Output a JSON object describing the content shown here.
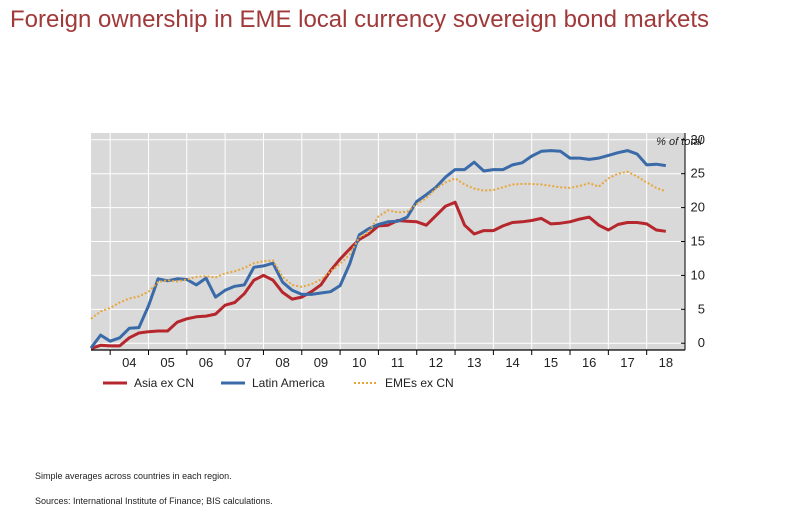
{
  "page": {
    "title": "Foreign ownership in EME local currency sovereign bond markets",
    "notes": [
      "Simple averages across countries in each region.",
      "Sources: International Institute of Finance; BIS calculations."
    ]
  },
  "chart_data": {
    "type": "line",
    "title": "Foreign ownership in EME local currency sovereign bond markets",
    "unit_label": "% of total",
    "ylim": [
      -1,
      31
    ],
    "yticks": [
      0,
      5,
      10,
      15,
      20,
      25,
      30
    ],
    "xlim": [
      2003.5,
      2019.0
    ],
    "xticks": [
      {
        "label": "04",
        "x": 2004.5
      },
      {
        "label": "05",
        "x": 2005.5
      },
      {
        "label": "06",
        "x": 2006.5
      },
      {
        "label": "07",
        "x": 2007.5
      },
      {
        "label": "08",
        "x": 2008.5
      },
      {
        "label": "09",
        "x": 2009.5
      },
      {
        "label": "10",
        "x": 2010.5
      },
      {
        "label": "11",
        "x": 2011.5
      },
      {
        "label": "12",
        "x": 2012.5
      },
      {
        "label": "13",
        "x": 2013.5
      },
      {
        "label": "14",
        "x": 2014.5
      },
      {
        "label": "15",
        "x": 2015.5
      },
      {
        "label": "16",
        "x": 2016.5
      },
      {
        "label": "17",
        "x": 2017.5
      },
      {
        "label": "18",
        "x": 2018.5
      }
    ],
    "grid": true,
    "legend_position": "bottom-left",
    "series": [
      {
        "name": "Asia ex CN",
        "color": "#b5272d",
        "style": "solid",
        "x": [
          2003.5,
          2003.75,
          2004.0,
          2004.25,
          2004.5,
          2004.75,
          2005.0,
          2005.25,
          2005.5,
          2005.75,
          2006.0,
          2006.25,
          2006.5,
          2006.75,
          2007.0,
          2007.25,
          2007.5,
          2007.75,
          2008.0,
          2008.25,
          2008.5,
          2008.75,
          2009.0,
          2009.25,
          2009.5,
          2009.75,
          2010.0,
          2010.25,
          2010.5,
          2010.75,
          2011.0,
          2011.25,
          2011.5,
          2011.75,
          2012.0,
          2012.25,
          2012.5,
          2012.75,
          2013.0,
          2013.25,
          2013.5,
          2013.75,
          2014.0,
          2014.25,
          2014.5,
          2014.75,
          2015.0,
          2015.25,
          2015.5,
          2015.75,
          2016.0,
          2016.25,
          2016.5,
          2016.75,
          2017.0,
          2017.25,
          2017.5,
          2017.75,
          2018.0,
          2018.25,
          2018.5
        ],
        "values": [
          -0.8,
          -0.3,
          -0.4,
          -0.4,
          0.8,
          1.5,
          1.7,
          1.8,
          1.8,
          3.1,
          3.6,
          3.9,
          4.0,
          4.3,
          5.6,
          6.0,
          7.3,
          9.3,
          10.0,
          9.3,
          7.5,
          6.5,
          6.8,
          7.6,
          8.6,
          10.7,
          12.4,
          13.9,
          15.3,
          16.1,
          17.3,
          17.4,
          18.1,
          18.0,
          17.9,
          17.4,
          18.8,
          20.2,
          20.8,
          17.4,
          16.1,
          16.6,
          16.6,
          17.3,
          17.8,
          17.9,
          18.1,
          18.4,
          17.6,
          17.7,
          17.9,
          18.3,
          18.6,
          17.4,
          16.7,
          17.5,
          17.8,
          17.8,
          17.6,
          16.7,
          16.5
        ]
      },
      {
        "name": "Latin America",
        "color": "#3a6aa8",
        "style": "solid",
        "x": [
          2003.5,
          2003.75,
          2004.0,
          2004.25,
          2004.5,
          2004.75,
          2005.0,
          2005.25,
          2005.5,
          2005.75,
          2006.0,
          2006.25,
          2006.5,
          2006.75,
          2007.0,
          2007.25,
          2007.5,
          2007.75,
          2008.0,
          2008.25,
          2008.5,
          2008.75,
          2009.0,
          2009.25,
          2009.5,
          2009.75,
          2010.0,
          2010.25,
          2010.5,
          2010.75,
          2011.0,
          2011.25,
          2011.5,
          2011.75,
          2012.0,
          2012.25,
          2012.5,
          2012.75,
          2013.0,
          2013.25,
          2013.5,
          2013.75,
          2014.0,
          2014.25,
          2014.5,
          2014.75,
          2015.0,
          2015.25,
          2015.5,
          2015.75,
          2016.0,
          2016.25,
          2016.5,
          2016.75,
          2017.0,
          2017.25,
          2017.5,
          2017.75,
          2018.0,
          2018.25,
          2018.5
        ],
        "values": [
          -0.7,
          1.2,
          0.3,
          0.8,
          2.2,
          2.3,
          5.5,
          9.5,
          9.2,
          9.5,
          9.4,
          8.6,
          9.6,
          6.8,
          7.8,
          8.4,
          8.6,
          11.2,
          11.4,
          11.8,
          9.0,
          7.8,
          7.2,
          7.2,
          7.4,
          7.6,
          8.5,
          11.7,
          16.0,
          16.9,
          17.5,
          17.9,
          18.0,
          18.6,
          20.9,
          21.9,
          23.0,
          24.5,
          25.6,
          25.6,
          26.7,
          25.4,
          25.6,
          25.6,
          26.3,
          26.6,
          27.6,
          28.3,
          28.4,
          28.3,
          27.3,
          27.3,
          27.1,
          27.3,
          27.7,
          28.1,
          28.4,
          27.9,
          26.3,
          26.4,
          26.2
        ]
      },
      {
        "name": "EMEs ex CN",
        "color": "#e8a63a",
        "style": "dotted",
        "x": [
          2003.5,
          2003.75,
          2004.0,
          2004.25,
          2004.5,
          2004.75,
          2005.0,
          2005.25,
          2005.5,
          2005.75,
          2006.0,
          2006.25,
          2006.5,
          2006.75,
          2007.0,
          2007.25,
          2007.5,
          2007.75,
          2008.0,
          2008.25,
          2008.5,
          2008.75,
          2009.0,
          2009.25,
          2009.5,
          2009.75,
          2010.0,
          2010.25,
          2010.5,
          2010.75,
          2011.0,
          2011.25,
          2011.5,
          2011.75,
          2012.0,
          2012.25,
          2012.5,
          2012.75,
          2013.0,
          2013.25,
          2013.5,
          2013.75,
          2014.0,
          2014.25,
          2014.5,
          2014.75,
          2015.0,
          2015.25,
          2015.5,
          2015.75,
          2016.0,
          2016.25,
          2016.5,
          2016.75,
          2017.0,
          2017.25,
          2017.5,
          2017.75,
          2018.0,
          2018.25,
          2018.5
        ],
        "values": [
          3.6,
          4.7,
          5.2,
          6.0,
          6.6,
          6.9,
          7.6,
          9.0,
          9.3,
          9.1,
          9.4,
          9.8,
          9.9,
          9.7,
          10.3,
          10.6,
          11.1,
          11.8,
          12.1,
          12.2,
          9.8,
          8.6,
          8.3,
          8.7,
          9.4,
          10.6,
          11.7,
          13.1,
          15.6,
          16.4,
          18.7,
          19.6,
          19.3,
          19.4,
          20.5,
          21.4,
          22.8,
          23.7,
          24.3,
          23.4,
          22.8,
          22.5,
          22.6,
          23.0,
          23.4,
          23.5,
          23.5,
          23.4,
          23.2,
          23.0,
          22.9,
          23.2,
          23.6,
          23.1,
          24.3,
          25.0,
          25.3,
          24.6,
          23.7,
          22.9,
          22.4
        ]
      }
    ]
  }
}
